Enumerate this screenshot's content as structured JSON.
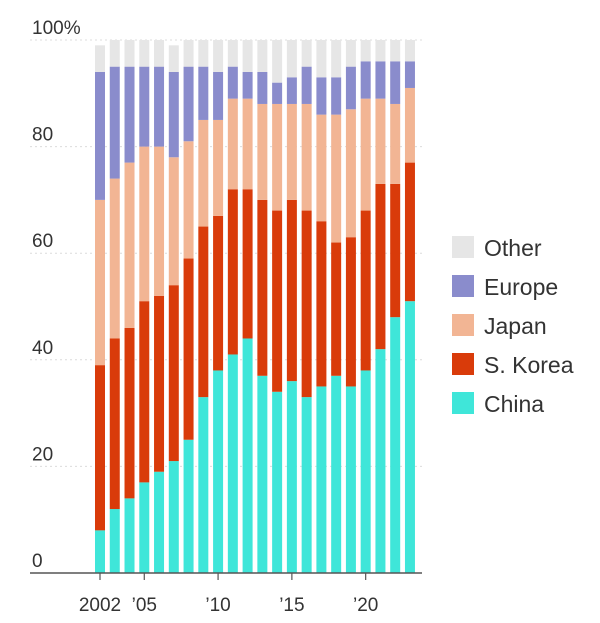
{
  "chart_data": {
    "type": "bar",
    "stacked": true,
    "title": "",
    "xlabel": "",
    "ylabel": "",
    "ylim": [
      0,
      100
    ],
    "y_ticks": [
      0,
      20,
      40,
      60,
      80,
      100
    ],
    "y_tick_labels": [
      "0",
      "20",
      "40",
      "60",
      "80",
      "100%"
    ],
    "x": [
      2002,
      2003,
      2004,
      2005,
      2006,
      2007,
      2008,
      2009,
      2010,
      2011,
      2012,
      2013,
      2014,
      2015,
      2016,
      2017,
      2018,
      2019,
      2020,
      2021,
      2022,
      2023
    ],
    "x_tick_years": [
      2002,
      2005,
      2010,
      2015,
      2020
    ],
    "x_tick_labels": [
      "2002",
      "’05",
      "’10",
      "’15",
      "’20"
    ],
    "grid": true,
    "legend_position": "right",
    "series": [
      {
        "name": "China",
        "color": "#3fe6d9",
        "values": [
          8,
          12,
          14,
          17,
          19,
          21,
          25,
          33,
          38,
          41,
          44,
          37,
          34,
          36,
          33,
          35,
          37,
          35,
          38,
          42,
          48,
          51
        ]
      },
      {
        "name": "S. Korea",
        "color": "#d93b0a",
        "values": [
          31,
          32,
          32,
          34,
          33,
          33,
          34,
          32,
          29,
          31,
          28,
          33,
          34,
          34,
          35,
          31,
          25,
          28,
          30,
          31,
          25,
          26
        ]
      },
      {
        "name": "Japan",
        "color": "#f2b594",
        "values": [
          31,
          30,
          31,
          29,
          28,
          24,
          22,
          20,
          18,
          17,
          17,
          18,
          20,
          18,
          20,
          20,
          24,
          24,
          21,
          16,
          15,
          14
        ]
      },
      {
        "name": "Europe",
        "color": "#8a8ccc",
        "values": [
          24,
          21,
          18,
          15,
          15,
          16,
          14,
          10,
          9,
          6,
          5,
          6,
          4,
          5,
          7,
          7,
          7,
          8,
          7,
          7,
          8,
          5
        ]
      },
      {
        "name": "Other",
        "color": "#e6e6e6",
        "values": [
          5,
          5,
          5,
          5,
          5,
          5,
          5,
          5,
          6,
          5,
          6,
          6,
          8,
          7,
          5,
          7,
          7,
          5,
          4,
          4,
          4,
          4
        ]
      }
    ],
    "legend_order": [
      "Other",
      "Europe",
      "Japan",
      "S. Korea",
      "China"
    ]
  }
}
